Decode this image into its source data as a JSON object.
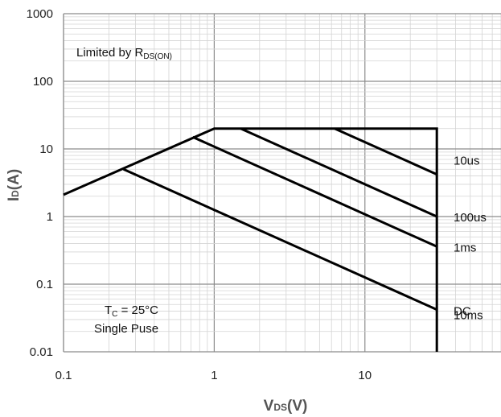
{
  "chart_data": {
    "type": "line",
    "xscale": "log",
    "yscale": "log",
    "xlim": [
      0.1,
      80
    ],
    "ylim": [
      0.01,
      1000
    ],
    "grid": true,
    "xlabel": {
      "main": "V",
      "sub": "DS",
      "tail": "(V)"
    },
    "ylabel": {
      "main": "I",
      "sub": "D",
      "tail": "(A)"
    },
    "x_ticks": [
      {
        "value": 0.1,
        "label": "0.1"
      },
      {
        "value": 1,
        "label": "1"
      },
      {
        "value": 10,
        "label": "10"
      }
    ],
    "y_ticks": [
      {
        "value": 0.01,
        "label": "0.01"
      },
      {
        "value": 0.1,
        "label": "0.1"
      },
      {
        "value": 1,
        "label": "1"
      },
      {
        "value": 10,
        "label": "10"
      },
      {
        "value": 100,
        "label": "100"
      },
      {
        "value": 1000,
        "label": "1000"
      }
    ],
    "series": [
      {
        "name": "10us",
        "points": [
          [
            6.3,
            20
          ],
          [
            30,
            4.2
          ]
        ]
      },
      {
        "name": "100us",
        "points": [
          [
            1.5,
            20
          ],
          [
            30,
            1.0
          ]
        ]
      },
      {
        "name": "1ms",
        "points": [
          [
            0.72,
            15
          ],
          [
            30,
            0.36
          ]
        ]
      },
      {
        "name": "10ms",
        "points": [
          [
            0.25,
            5
          ],
          [
            30,
            0.042
          ]
        ]
      },
      {
        "name": "DC",
        "points": [
          [
            0.1,
            2.1
          ],
          [
            1,
            20
          ],
          [
            30,
            20
          ],
          [
            30,
            0.01
          ]
        ]
      }
    ],
    "annotations": {
      "limit": {
        "main": "Limited by R",
        "sub": "DS(ON)"
      },
      "condition": {
        "main": "T",
        "sub": "C",
        "tail": " = 25°C"
      },
      "pulse": "Single Puse"
    }
  }
}
